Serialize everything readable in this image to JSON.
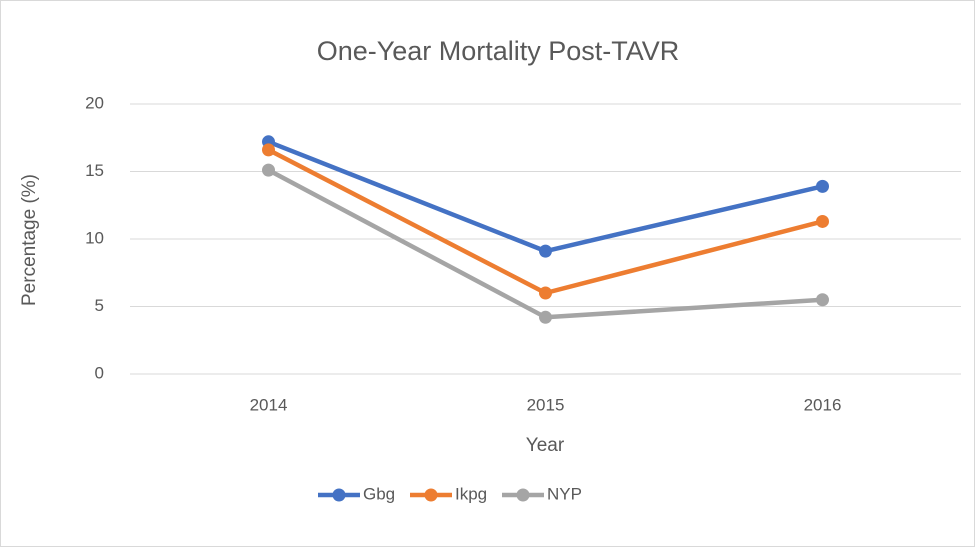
{
  "chart_data": {
    "type": "line",
    "title": "One-Year Mortality Post-TAVR",
    "x_label": "Year",
    "y_label": "Percentage (%)",
    "categories": [
      "2014",
      "2015",
      "2016"
    ],
    "series": [
      {
        "name": "Gbg",
        "color": "#4472c4",
        "values": [
          17.2,
          9.1,
          13.9
        ]
      },
      {
        "name": "Ikpg",
        "color": "#ed7d31",
        "values": [
          16.6,
          6.0,
          11.3
        ]
      },
      {
        "name": "NYP",
        "color": "#a5a5a5",
        "values": [
          15.1,
          4.2,
          5.5
        ]
      }
    ],
    "ylim": [
      0,
      20
    ],
    "yticks": [
      0,
      5,
      10,
      15,
      20
    ],
    "grid": true,
    "legend": "bottom"
  }
}
